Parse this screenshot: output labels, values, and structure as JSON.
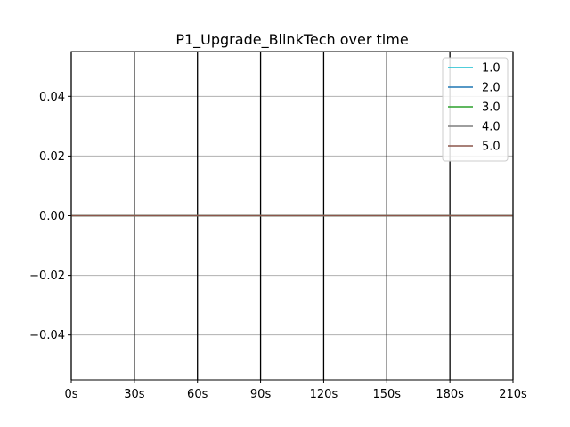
{
  "chart_data": {
    "type": "line",
    "title": "P1_Upgrade_BlinkTech over time",
    "xlabel": "",
    "ylabel": "",
    "x": [
      0,
      30,
      60,
      90,
      120,
      150,
      180,
      210
    ],
    "x_ticks": [
      0,
      30,
      60,
      90,
      120,
      150,
      180,
      210
    ],
    "x_tick_labels": [
      "0s",
      "30s",
      "60s",
      "90s",
      "120s",
      "150s",
      "180s",
      "210s"
    ],
    "xlim": [
      0,
      210
    ],
    "y_ticks": [
      -0.04,
      -0.02,
      0.0,
      0.02,
      0.04
    ],
    "y_tick_labels": [
      "−0.04",
      "−0.02",
      "0.00",
      "0.02",
      "0.04"
    ],
    "ylim": [
      -0.055,
      0.055
    ],
    "grid": "y-horizontal-gray, x-vertical-black",
    "legend_position": "top-right",
    "series": [
      {
        "name": "1.0",
        "color": "#17becf",
        "values": [
          0,
          0,
          0,
          0,
          0,
          0,
          0,
          0
        ]
      },
      {
        "name": "2.0",
        "color": "#1f77b4",
        "values": [
          0,
          0,
          0,
          0,
          0,
          0,
          0,
          0
        ]
      },
      {
        "name": "3.0",
        "color": "#2ca02c",
        "values": [
          0,
          0,
          0,
          0,
          0,
          0,
          0,
          0
        ]
      },
      {
        "name": "4.0",
        "color": "#7f7f7f",
        "values": [
          0,
          0,
          0,
          0,
          0,
          0,
          0,
          0
        ]
      },
      {
        "name": "5.0",
        "color": "#8c564b",
        "values": [
          0,
          0,
          0,
          0,
          0,
          0,
          0,
          0
        ]
      }
    ]
  }
}
